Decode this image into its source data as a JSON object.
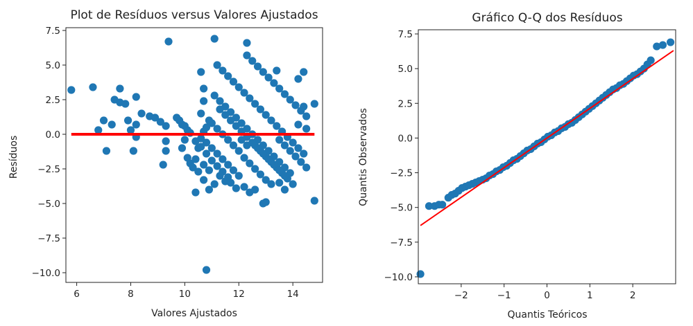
{
  "chart_data": [
    {
      "type": "scatter",
      "title": "Plot de Resíduos versus Valores Ajustados",
      "xlabel": "Valores Ajustados",
      "ylabel": "Resíduos",
      "xlim": [
        5.6,
        15.1
      ],
      "ylim": [
        -10.7,
        7.7
      ],
      "xticks": [
        6,
        8,
        10,
        12,
        14
      ],
      "xtick_labels": [
        "6",
        "8",
        "10",
        "12",
        "14"
      ],
      "yticks": [
        7.5,
        5.0,
        2.5,
        0.0,
        -2.5,
        -5.0,
        -7.5,
        -10.0
      ],
      "ytick_labels": [
        "7.5",
        "5.0",
        "2.5",
        "0.0",
        "−2.5",
        "−5.0",
        "−7.5",
        "−10.0"
      ],
      "points_color": "#1f77b4",
      "reference_line": {
        "y": 0,
        "x_start": 5.8,
        "x_end": 14.8,
        "color": "#ff0000"
      },
      "points": [
        [
          5.8,
          3.2
        ],
        [
          6.6,
          3.4
        ],
        [
          6.8,
          0.3
        ],
        [
          7.0,
          1.0
        ],
        [
          7.1,
          -1.2
        ],
        [
          7.3,
          0.7
        ],
        [
          7.4,
          2.5
        ],
        [
          7.6,
          2.3
        ],
        [
          7.6,
          3.3
        ],
        [
          7.8,
          2.2
        ],
        [
          7.9,
          1.0
        ],
        [
          8.0,
          0.3
        ],
        [
          8.1,
          -1.2
        ],
        [
          8.2,
          2.7
        ],
        [
          8.2,
          0.7
        ],
        [
          8.2,
          -0.2
        ],
        [
          8.4,
          1.5
        ],
        [
          8.7,
          1.3
        ],
        [
          8.9,
          1.2
        ],
        [
          9.1,
          0.9
        ],
        [
          9.2,
          -2.2
        ],
        [
          9.3,
          -1.2
        ],
        [
          9.3,
          -0.5
        ],
        [
          9.3,
          0.6
        ],
        [
          9.4,
          6.7
        ],
        [
          9.7,
          1.2
        ],
        [
          9.8,
          1.0
        ],
        [
          9.9,
          0.7
        ],
        [
          10.0,
          0.6
        ],
        [
          10.1,
          0.3
        ],
        [
          10.1,
          -1.7
        ],
        [
          10.2,
          -2.1
        ],
        [
          10.3,
          -2.4
        ],
        [
          10.4,
          -1.8
        ],
        [
          10.5,
          -1.0
        ],
        [
          10.6,
          -0.3
        ],
        [
          10.7,
          0.2
        ],
        [
          10.8,
          0.5
        ],
        [
          10.4,
          -4.2
        ],
        [
          10.7,
          -3.3
        ],
        [
          10.4,
          -0.5
        ],
        [
          10.6,
          -0.9
        ],
        [
          10.8,
          -1.4
        ],
        [
          11.0,
          -1.9
        ],
        [
          11.2,
          -2.3
        ],
        [
          11.4,
          -2.7
        ],
        [
          11.6,
          -3.1
        ],
        [
          10.9,
          -4.0
        ],
        [
          10.8,
          -9.8
        ],
        [
          11.0,
          0.8
        ],
        [
          11.2,
          0.4
        ],
        [
          11.4,
          0.0
        ],
        [
          11.6,
          -0.4
        ],
        [
          11.8,
          -0.8
        ],
        [
          12.0,
          -1.2
        ],
        [
          12.2,
          -1.7
        ],
        [
          12.4,
          -2.1
        ],
        [
          12.6,
          -2.5
        ],
        [
          12.8,
          -2.9
        ],
        [
          13.0,
          -3.3
        ],
        [
          13.2,
          -3.6
        ],
        [
          11.1,
          2.8
        ],
        [
          11.3,
          2.4
        ],
        [
          11.5,
          2.0
        ],
        [
          11.7,
          1.6
        ],
        [
          11.9,
          1.2
        ],
        [
          12.1,
          0.8
        ],
        [
          12.3,
          0.4
        ],
        [
          12.5,
          0.0
        ],
        [
          12.7,
          -0.4
        ],
        [
          12.9,
          -0.8
        ],
        [
          13.1,
          -1.2
        ],
        [
          13.3,
          -1.6
        ],
        [
          13.5,
          -2.0
        ],
        [
          13.7,
          -2.4
        ],
        [
          13.9,
          -2.8
        ],
        [
          11.2,
          5.0
        ],
        [
          11.4,
          4.6
        ],
        [
          11.6,
          4.2
        ],
        [
          11.8,
          3.8
        ],
        [
          12.0,
          3.4
        ],
        [
          12.2,
          3.0
        ],
        [
          12.4,
          2.6
        ],
        [
          12.6,
          2.2
        ],
        [
          12.8,
          1.8
        ],
        [
          13.0,
          1.4
        ],
        [
          13.2,
          1.0
        ],
        [
          13.4,
          0.6
        ],
        [
          13.6,
          0.2
        ],
        [
          13.8,
          -0.2
        ],
        [
          14.0,
          -0.6
        ],
        [
          14.2,
          -1.0
        ],
        [
          14.4,
          -1.4
        ],
        [
          12.3,
          5.7
        ],
        [
          12.5,
          5.3
        ],
        [
          12.7,
          4.9
        ],
        [
          12.9,
          4.5
        ],
        [
          13.1,
          4.1
        ],
        [
          13.3,
          3.7
        ],
        [
          13.5,
          3.3
        ],
        [
          13.7,
          2.9
        ],
        [
          13.9,
          2.5
        ],
        [
          14.1,
          2.1
        ],
        [
          14.3,
          1.7
        ],
        [
          14.5,
          1.3
        ],
        [
          12.2,
          -3.8
        ],
        [
          12.4,
          -4.2
        ],
        [
          12.6,
          -4.0
        ],
        [
          12.9,
          -5.0
        ],
        [
          13.0,
          -4.9
        ],
        [
          12.0,
          -3.0
        ],
        [
          11.8,
          -2.6
        ],
        [
          11.6,
          -2.2
        ],
        [
          11.4,
          -1.8
        ],
        [
          11.2,
          -1.4
        ],
        [
          11.0,
          -1.0
        ],
        [
          10.8,
          -0.6
        ],
        [
          12.6,
          -0.8
        ],
        [
          12.8,
          -1.2
        ],
        [
          13.0,
          -1.6
        ],
        [
          13.2,
          -2.0
        ],
        [
          13.4,
          -2.4
        ],
        [
          13.6,
          -2.8
        ],
        [
          13.8,
          -3.2
        ],
        [
          14.0,
          -3.6
        ],
        [
          13.5,
          -0.4
        ],
        [
          13.7,
          -0.8
        ],
        [
          13.9,
          -1.2
        ],
        [
          14.1,
          -1.6
        ],
        [
          14.3,
          -2.0
        ],
        [
          14.5,
          -2.4
        ],
        [
          12.3,
          6.6
        ],
        [
          11.1,
          6.9
        ],
        [
          13.4,
          4.6
        ],
        [
          14.2,
          4.0
        ],
        [
          14.4,
          4.5
        ],
        [
          14.4,
          2.0
        ],
        [
          14.2,
          0.7
        ],
        [
          14.5,
          0.4
        ],
        [
          14.8,
          2.2
        ],
        [
          14.8,
          -4.8
        ],
        [
          13.7,
          -4.0
        ],
        [
          13.5,
          -3.5
        ],
        [
          11.7,
          -3.5
        ],
        [
          11.9,
          -3.9
        ],
        [
          11.3,
          -3.0
        ],
        [
          11.5,
          -3.4
        ],
        [
          10.9,
          -2.6
        ],
        [
          10.7,
          -2.2
        ],
        [
          10.5,
          -2.7
        ],
        [
          11.1,
          -3.6
        ],
        [
          12.1,
          -0.4
        ],
        [
          12.3,
          -0.8
        ],
        [
          10.2,
          0.1
        ],
        [
          10.0,
          -0.4
        ],
        [
          9.9,
          -1.0
        ],
        [
          10.6,
          4.5
        ],
        [
          10.7,
          2.4
        ],
        [
          10.7,
          3.3
        ],
        [
          10.6,
          1.5
        ],
        [
          10.9,
          1.0
        ],
        [
          11.3,
          1.8
        ],
        [
          11.5,
          1.4
        ],
        [
          11.7,
          1.0
        ],
        [
          11.9,
          0.6
        ],
        [
          12.1,
          0.2
        ],
        [
          12.3,
          -0.2
        ],
        [
          12.5,
          -0.6
        ],
        [
          12.7,
          -1.0
        ],
        [
          12.9,
          -1.4
        ],
        [
          13.1,
          -1.8
        ],
        [
          13.3,
          -2.2
        ],
        [
          13.5,
          -2.6
        ],
        [
          13.7,
          -3.0
        ]
      ]
    },
    {
      "type": "scatter",
      "title": "Gráfico Q-Q dos Resíduos",
      "xlabel": "Quantis Teóricos",
      "ylabel": "Quantis Observados",
      "xlim": [
        -3.0,
        3.0
      ],
      "ylim": [
        -10.5,
        7.8
      ],
      "xticks": [
        -2,
        -1,
        0,
        1,
        2
      ],
      "xtick_labels": [
        "−2",
        "−1",
        "0",
        "1",
        "2"
      ],
      "yticks": [
        7.5,
        5.0,
        2.5,
        0.0,
        -2.5,
        -5.0,
        -7.5,
        -10.0
      ],
      "ytick_labels": [
        "7.5",
        "5.0",
        "2.5",
        "0.0",
        "−2.5",
        "−5.0",
        "−7.5",
        "−10.0"
      ],
      "points_color": "#1f77b4",
      "reference_line": {
        "x_start": -2.95,
        "y_start": -6.3,
        "x_end": 2.95,
        "y_end": 6.3,
        "color": "#ff0000"
      },
      "points": [
        [
          -2.95,
          -9.8
        ],
        [
          -2.75,
          -4.9
        ],
        [
          -2.62,
          -4.9
        ],
        [
          -2.52,
          -4.8
        ],
        [
          -2.44,
          -4.8
        ],
        [
          -2.3,
          -4.3
        ],
        [
          -2.22,
          -4.1
        ],
        [
          -2.14,
          -4.0
        ],
        [
          -2.06,
          -3.8
        ],
        [
          -1.98,
          -3.6
        ],
        [
          -1.9,
          -3.5
        ],
        [
          -1.82,
          -3.4
        ],
        [
          -1.74,
          -3.3
        ],
        [
          -1.66,
          -3.2
        ],
        [
          -1.58,
          -3.1
        ],
        [
          -1.5,
          -3.0
        ],
        [
          -1.42,
          -2.9
        ],
        [
          -1.34,
          -2.7
        ],
        [
          -1.26,
          -2.6
        ],
        [
          -1.18,
          -2.4
        ],
        [
          -1.1,
          -2.3
        ],
        [
          -1.02,
          -2.1
        ],
        [
          -0.94,
          -2.0
        ],
        [
          -0.86,
          -1.8
        ],
        [
          -0.78,
          -1.6
        ],
        [
          -0.7,
          -1.5
        ],
        [
          -0.62,
          -1.3
        ],
        [
          -0.54,
          -1.1
        ],
        [
          -0.46,
          -0.9
        ],
        [
          -0.38,
          -0.8
        ],
        [
          -0.3,
          -0.6
        ],
        [
          -0.22,
          -0.4
        ],
        [
          -0.14,
          -0.3
        ],
        [
          -0.06,
          -0.1
        ],
        [
          0.02,
          0.1
        ],
        [
          0.1,
          0.2
        ],
        [
          0.18,
          0.4
        ],
        [
          0.26,
          0.5
        ],
        [
          0.34,
          0.7
        ],
        [
          0.42,
          0.8
        ],
        [
          0.5,
          1.0
        ],
        [
          0.58,
          1.1
        ],
        [
          0.66,
          1.3
        ],
        [
          0.74,
          1.5
        ],
        [
          0.82,
          1.7
        ],
        [
          0.9,
          1.9
        ],
        [
          0.98,
          2.1
        ],
        [
          1.06,
          2.3
        ],
        [
          1.14,
          2.5
        ],
        [
          1.22,
          2.7
        ],
        [
          1.3,
          2.9
        ],
        [
          1.38,
          3.1
        ],
        [
          1.46,
          3.3
        ],
        [
          1.54,
          3.5
        ],
        [
          1.62,
          3.6
        ],
        [
          1.7,
          3.8
        ],
        [
          1.78,
          3.9
        ],
        [
          1.86,
          4.1
        ],
        [
          1.94,
          4.3
        ],
        [
          2.02,
          4.5
        ],
        [
          2.1,
          4.6
        ],
        [
          2.18,
          4.8
        ],
        [
          2.26,
          5.0
        ],
        [
          2.34,
          5.3
        ],
        [
          2.42,
          5.6
        ],
        [
          2.56,
          6.6
        ],
        [
          2.7,
          6.7
        ],
        [
          2.88,
          6.9
        ]
      ]
    }
  ]
}
